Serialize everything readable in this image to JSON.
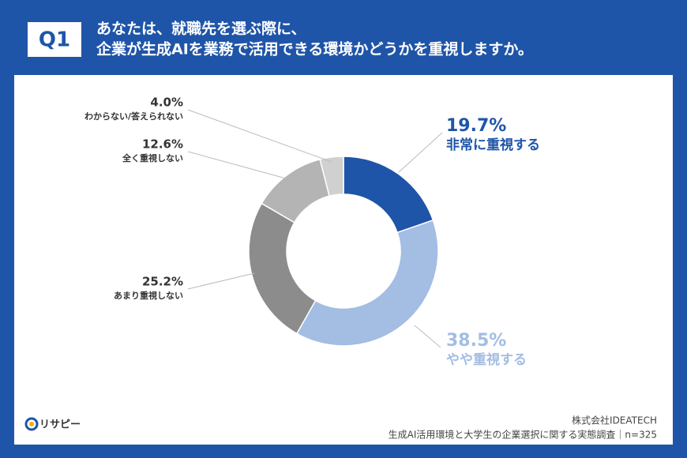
{
  "badge": "Q1",
  "chart_data": {
    "type": "donut",
    "title": [
      "あなたは、就職先を選ぶ際に、",
      "企業が生成AIを業務で活用できる環境かどうかを重視しますか。"
    ],
    "categories": [
      "非常に重視する",
      "やや重視する",
      "あまり重視しない",
      "全く重視しない",
      "わからない/答えられない"
    ],
    "values": [
      19.7,
      38.5,
      25.2,
      12.6,
      4.0
    ],
    "value_labels": [
      "19.7%",
      "38.5%",
      "25.2%",
      "12.6%",
      "4.0%"
    ],
    "colors": [
      "#1f55a8",
      "#a3bde3",
      "#8c8c8c",
      "#b4b4b4",
      "#d0d0d0"
    ]
  },
  "footer": {
    "company": "株式会社IDEATECH",
    "survey": "生成AI活用環境と大学生の企業選択に関する実態調査｜n=325"
  },
  "logo": "リサピー"
}
